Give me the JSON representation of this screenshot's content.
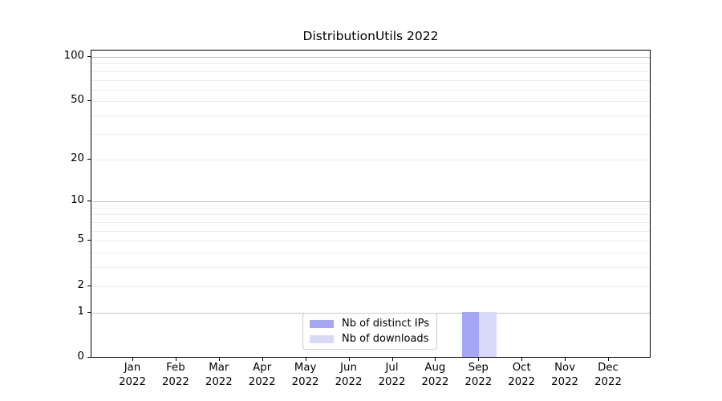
{
  "page": {
    "background": "#ffffff"
  },
  "chart_data": {
    "type": "bar",
    "title": "DistributionUtils 2022",
    "categories": [
      "Jan 2022",
      "Feb 2022",
      "Mar 2022",
      "Apr 2022",
      "May 2022",
      "Jun 2022",
      "Jul 2022",
      "Aug 2022",
      "Sep 2022",
      "Oct 2022",
      "Nov 2022",
      "Dec 2022"
    ],
    "series": [
      {
        "name": "Nb of distinct IPs",
        "color": "#a6a6f7",
        "values": [
          0,
          0,
          0,
          0,
          0,
          0,
          0,
          0,
          1,
          0,
          0,
          0
        ]
      },
      {
        "name": "Nb of downloads",
        "color": "#d9d9fa",
        "values": [
          0,
          0,
          0,
          0,
          0,
          0,
          0,
          0,
          1,
          0,
          0,
          0
        ]
      }
    ],
    "xlabel": "",
    "ylabel": "",
    "yscale": "log1p",
    "ylim": [
      0,
      110.3
    ],
    "yticks": [
      0,
      1,
      2,
      5,
      10,
      20,
      50,
      100
    ],
    "major_gridlines": [
      1,
      10,
      100
    ],
    "minor_gridlines": [
      2,
      3,
      4,
      5,
      6,
      7,
      8,
      9,
      20,
      30,
      40,
      50,
      60,
      70,
      80,
      90
    ],
    "grid": true,
    "legend_position": "lower center"
  },
  "colors": {
    "spine": "#000000",
    "major_grid": "#c3c3c3",
    "minor_grid": "#ececec",
    "text": "#000000",
    "legend_border": "#cccccc",
    "legend_background": "#ffffff"
  }
}
